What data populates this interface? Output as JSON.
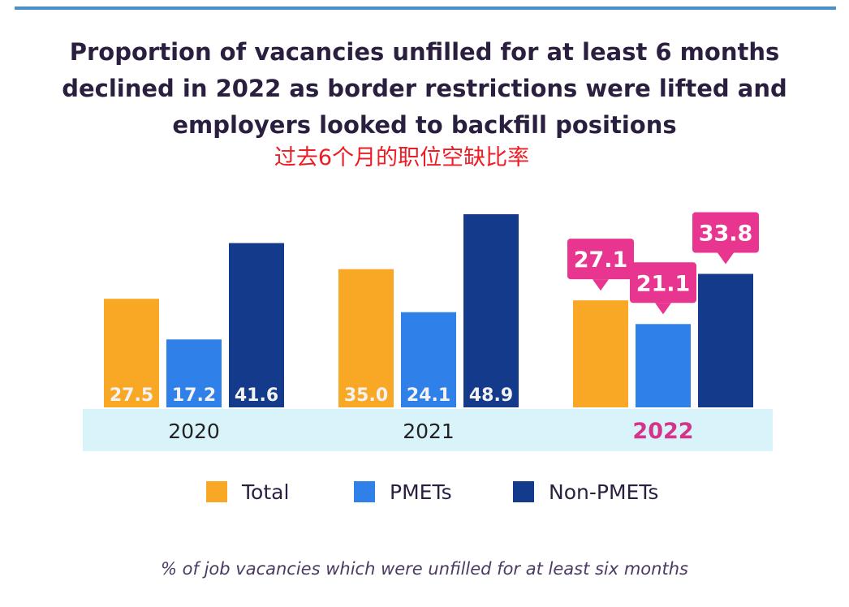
{
  "title_lines": [
    "Proportion of vacancies unfilled for at least 6 months",
    "declined in 2022 as border restrictions were lifted and",
    "employers looked to backfill positions"
  ],
  "subtitle_cn": "过去6个月的职位空缺比率",
  "footnote": "% of job vacancies which were unfilled for at least six months",
  "colors": {
    "total": "#f9a825",
    "pmets": "#2f80e8",
    "non_pmets": "#143a8c",
    "callout": "#e8358f",
    "category_band": "#d9f3fb",
    "highlight_year": "#d6338a",
    "bar_label": "#f2f2f2"
  },
  "legend": [
    {
      "label": "Total",
      "color_key": "total"
    },
    {
      "label": "PMETs",
      "color_key": "pmets"
    },
    {
      "label": "Non-PMETs",
      "color_key": "non_pmets"
    }
  ],
  "chart_data": {
    "type": "bar",
    "categories": [
      "2020",
      "2021",
      "2022"
    ],
    "series": [
      {
        "name": "Total",
        "values": [
          27.5,
          35.0,
          27.1
        ]
      },
      {
        "name": "PMETs",
        "values": [
          17.2,
          24.1,
          21.1
        ]
      },
      {
        "name": "Non-PMETs",
        "values": [
          41.6,
          48.9,
          33.8
        ]
      }
    ],
    "value_labels": [
      [
        "27.5",
        "35.0",
        "27.1"
      ],
      [
        "17.2",
        "24.1",
        "21.1"
      ],
      [
        "41.6",
        "48.9",
        "33.8"
      ]
    ],
    "highlighted_category": "2022",
    "title": "Proportion of vacancies unfilled for at least 6 months declined in 2022 as border restrictions were lifted and employers looked to backfill positions",
    "xlabel": "",
    "ylabel": "",
    "ylim": [
      0,
      50
    ],
    "grid": false,
    "legend_position": "bottom"
  }
}
